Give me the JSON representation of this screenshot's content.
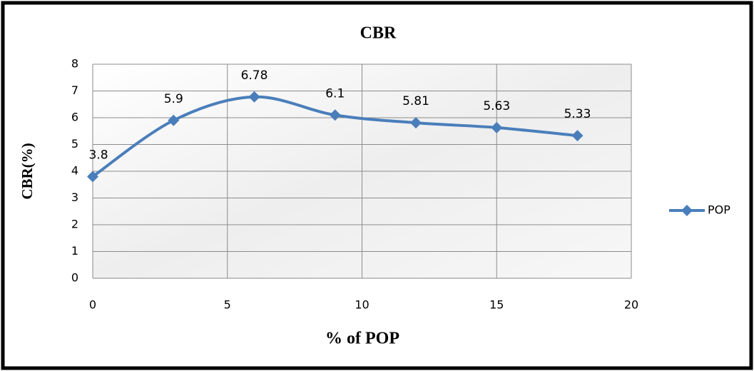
{
  "chart_data": {
    "type": "line",
    "title": "CBR",
    "x_label": "% of POP",
    "y_label": "CBR(%)",
    "x": [
      0,
      3,
      6,
      9,
      12,
      15,
      18
    ],
    "series": [
      {
        "name": "POP",
        "color": "#4a7ebb",
        "values": [
          3.8,
          5.9,
          6.78,
          6.1,
          5.81,
          5.63,
          5.33
        ]
      }
    ],
    "xlim": [
      0,
      20
    ],
    "xticks": [
      0,
      5,
      10,
      15,
      20
    ],
    "ylim": [
      0,
      8
    ],
    "yticks": [
      0,
      1,
      2,
      3,
      4,
      5,
      6,
      7,
      8
    ],
    "grid": true,
    "data_labels": true,
    "legend": "right"
  }
}
